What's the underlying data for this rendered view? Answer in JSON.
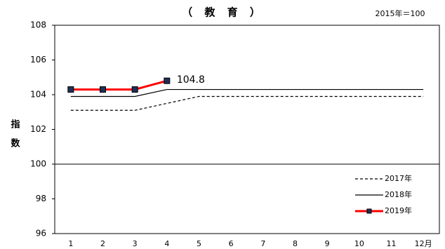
{
  "chart_data": {
    "type": "line",
    "title": "（ 教 育 ）",
    "subtitle": "2015年＝100",
    "y_label": "指数",
    "categories": [
      "1",
      "2",
      "3",
      "4",
      "5",
      "6",
      "7",
      "8",
      "9",
      "10",
      "11",
      "12月"
    ],
    "series": [
      {
        "name": "2017年",
        "color": "#000000",
        "dash": true,
        "values": [
          103.1,
          103.1,
          103.1,
          103.5,
          103.9,
          103.9,
          103.9,
          103.9,
          103.9,
          103.9,
          103.9,
          103.9
        ]
      },
      {
        "name": "2018年",
        "color": "#000000",
        "values": [
          103.9,
          103.9,
          103.9,
          104.3,
          104.3,
          104.3,
          104.3,
          104.3,
          104.3,
          104.3,
          104.3,
          104.3
        ]
      },
      {
        "name": "2019年",
        "color": "#ff0000",
        "marker": "square",
        "data_labels": "last",
        "values": [
          104.3,
          104.3,
          104.3,
          104.8,
          null,
          null,
          null,
          null,
          null,
          null,
          null,
          null
        ]
      }
    ],
    "ylim": [
      96,
      108
    ],
    "yticks": [
      96,
      98,
      100,
      102,
      104,
      106,
      108
    ],
    "reference_line": 100,
    "legend": "lower right"
  }
}
